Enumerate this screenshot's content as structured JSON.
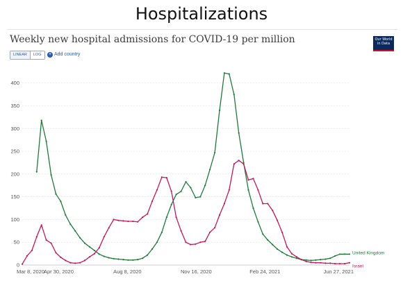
{
  "slide": {
    "title": "Hospitalizations"
  },
  "header": {
    "chart_title": "Weekly new hospital admissions for COVID-19 per million",
    "logo_text": "Our World in Data",
    "scale_options": [
      "LINEAR",
      "LOG"
    ],
    "add_country_label": "Add country"
  },
  "chart_data": {
    "type": "line",
    "title": "Weekly new hospital admissions for COVID-19 per million",
    "xlabel": "",
    "ylabel": "",
    "ylim": [
      0,
      430
    ],
    "y_ticks": [
      0,
      50,
      100,
      150,
      200,
      250,
      300,
      350,
      400
    ],
    "x_ticks": [
      "Mar 8, 2020",
      "Apr 30, 2020",
      "Aug 8, 2020",
      "Nov 16, 2020",
      "Feb 24, 2021",
      "Jun 27, 2021"
    ],
    "x_ticks_iso": [
      "2020-03-08",
      "2020-04-30",
      "2020-08-08",
      "2020-11-16",
      "2021-02-24",
      "2021-06-27"
    ],
    "grid": true,
    "series": [
      {
        "name": "United Kingdom",
        "color": "#1f7a3a",
        "x": [
          "2020-03-29",
          "2020-04-05",
          "2020-04-12",
          "2020-04-19",
          "2020-04-26",
          "2020-05-03",
          "2020-05-10",
          "2020-05-17",
          "2020-05-24",
          "2020-05-31",
          "2020-06-07",
          "2020-06-14",
          "2020-06-21",
          "2020-06-28",
          "2020-07-05",
          "2020-07-12",
          "2020-07-19",
          "2020-07-26",
          "2020-08-02",
          "2020-08-09",
          "2020-08-16",
          "2020-08-23",
          "2020-08-30",
          "2020-09-06",
          "2020-09-13",
          "2020-09-20",
          "2020-09-27",
          "2020-10-04",
          "2020-10-11",
          "2020-10-18",
          "2020-10-25",
          "2020-11-01",
          "2020-11-08",
          "2020-11-15",
          "2020-11-22",
          "2020-11-29",
          "2020-12-06",
          "2020-12-13",
          "2020-12-20",
          "2020-12-27",
          "2021-01-03",
          "2021-01-10",
          "2021-01-17",
          "2021-01-24",
          "2021-01-31",
          "2021-02-07",
          "2021-02-14",
          "2021-02-21",
          "2021-02-28",
          "2021-03-07",
          "2021-03-14",
          "2021-03-21",
          "2021-03-28",
          "2021-04-04",
          "2021-04-11",
          "2021-04-18",
          "2021-04-25",
          "2021-05-02",
          "2021-05-09",
          "2021-05-16",
          "2021-05-23",
          "2021-05-30",
          "2021-06-06",
          "2021-06-13",
          "2021-06-20",
          "2021-06-27"
        ],
        "values": [
          205,
          318,
          272,
          198,
          156,
          140,
          110,
          90,
          75,
          60,
          48,
          40,
          32,
          24,
          19,
          16,
          14,
          13,
          12,
          11,
          11,
          12,
          15,
          22,
          35,
          50,
          72,
          105,
          133,
          155,
          162,
          183,
          170,
          148,
          150,
          175,
          210,
          247,
          340,
          422,
          420,
          375,
          290,
          225,
          165,
          125,
          95,
          68,
          55,
          45,
          35,
          28,
          22,
          18,
          15,
          12,
          11,
          10,
          11,
          12,
          13,
          15,
          20,
          24,
          24,
          24
        ]
      },
      {
        "name": "Israel",
        "color": "#c2185b",
        "x": [
          "2020-03-08",
          "2020-03-15",
          "2020-03-22",
          "2020-03-29",
          "2020-04-05",
          "2020-04-12",
          "2020-04-19",
          "2020-04-26",
          "2020-05-03",
          "2020-05-10",
          "2020-05-17",
          "2020-05-24",
          "2020-05-31",
          "2020-06-07",
          "2020-06-14",
          "2020-06-21",
          "2020-06-28",
          "2020-07-05",
          "2020-07-12",
          "2020-07-19",
          "2020-07-26",
          "2020-08-02",
          "2020-08-09",
          "2020-08-16",
          "2020-08-23",
          "2020-08-30",
          "2020-09-06",
          "2020-09-13",
          "2020-09-20",
          "2020-09-27",
          "2020-10-04",
          "2020-10-11",
          "2020-10-18",
          "2020-10-25",
          "2020-11-01",
          "2020-11-08",
          "2020-11-15",
          "2020-11-22",
          "2020-11-29",
          "2020-12-06",
          "2020-12-13",
          "2020-12-20",
          "2020-12-27",
          "2021-01-03",
          "2021-01-10",
          "2021-01-17",
          "2021-01-24",
          "2021-01-31",
          "2021-02-07",
          "2021-02-14",
          "2021-02-21",
          "2021-02-28",
          "2021-03-07",
          "2021-03-14",
          "2021-03-21",
          "2021-03-28",
          "2021-04-04",
          "2021-04-11",
          "2021-04-18",
          "2021-04-25",
          "2021-05-02",
          "2021-05-09",
          "2021-05-16",
          "2021-05-23",
          "2021-05-30",
          "2021-06-06",
          "2021-06-13",
          "2021-06-20",
          "2021-06-27"
        ],
        "values": [
          2,
          20,
          32,
          62,
          88,
          55,
          48,
          27,
          17,
          10,
          5,
          4,
          5,
          10,
          18,
          25,
          38,
          62,
          82,
          100,
          98,
          97,
          96,
          96,
          95,
          105,
          112,
          140,
          165,
          193,
          192,
          162,
          105,
          75,
          50,
          45,
          46,
          50,
          52,
          72,
          82,
          110,
          135,
          165,
          222,
          230,
          222,
          187,
          190,
          165,
          135,
          135,
          120,
          98,
          72,
          40,
          25,
          18,
          12,
          8,
          6,
          5,
          5,
          4,
          4,
          3,
          3,
          3,
          5
        ]
      }
    ]
  }
}
